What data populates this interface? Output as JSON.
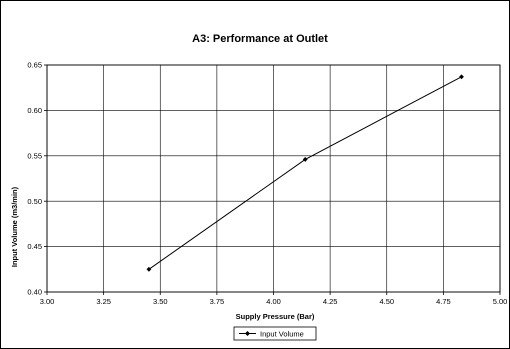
{
  "chart_data": {
    "type": "line",
    "title": "A3: Performance at Outlet",
    "xlabel": "Supply Pressure (Bar)",
    "ylabel": "Input Volume (m3/min)",
    "xlim": [
      3.0,
      5.0
    ],
    "ylim": [
      0.4,
      0.65
    ],
    "x_ticks": [
      "3.00",
      "3.25",
      "3.50",
      "3.75",
      "4.00",
      "4.25",
      "4.50",
      "4.75",
      "5.00"
    ],
    "y_ticks": [
      "0.40",
      "0.45",
      "0.50",
      "0.55",
      "0.60",
      "0.65"
    ],
    "grid": true,
    "legend_position": "bottom",
    "series": [
      {
        "name": "Input Volume",
        "color": "#000000",
        "marker": "diamond",
        "points": [
          {
            "x": 3.45,
            "y": 0.425
          },
          {
            "x": 4.14,
            "y": 0.546
          },
          {
            "x": 4.83,
            "y": 0.637
          }
        ]
      }
    ]
  }
}
